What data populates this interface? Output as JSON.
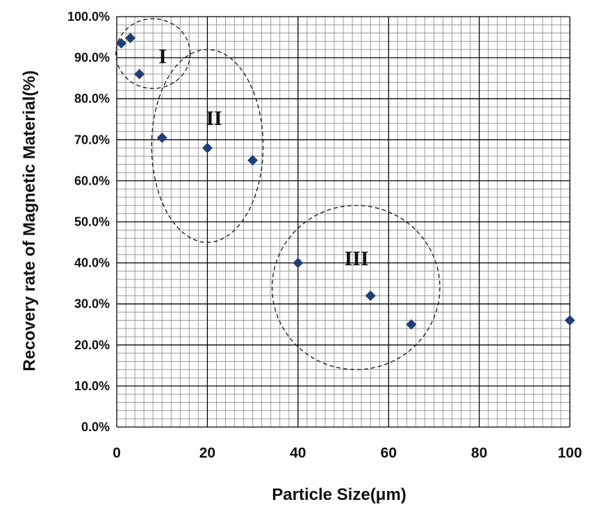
{
  "chart_data": {
    "type": "scatter",
    "xlabel": "Particle Size(μm)",
    "ylabel": "Recovery  rate of  Magnetic  Material(%)",
    "xlim": [
      0,
      100
    ],
    "ylim": [
      0,
      1
    ],
    "x_ticks": [
      "0",
      "20",
      "40",
      "60",
      "80",
      "100"
    ],
    "x_tick_values": [
      0,
      20,
      40,
      60,
      80,
      100
    ],
    "y_ticks": [
      "0.0%",
      "10.0%",
      "20.0%",
      "30.0%",
      "40.0%",
      "50.0%",
      "60.0%",
      "70.0%",
      "80.0%",
      "90.0%",
      "100.0%"
    ],
    "y_tick_values": [
      0,
      0.1,
      0.2,
      0.3,
      0.4,
      0.5,
      0.6,
      0.7,
      0.8,
      0.9,
      1.0
    ],
    "grid": true,
    "marker": "diamond",
    "marker_color": "#1f3f77",
    "points": [
      {
        "x": 1,
        "y": 0.935
      },
      {
        "x": 3,
        "y": 0.948
      },
      {
        "x": 5,
        "y": 0.86
      },
      {
        "x": 10,
        "y": 0.705
      },
      {
        "x": 20,
        "y": 0.68
      },
      {
        "x": 30,
        "y": 0.65
      },
      {
        "x": 40,
        "y": 0.4
      },
      {
        "x": 56,
        "y": 0.32
      },
      {
        "x": 65,
        "y": 0.25
      },
      {
        "x": 100,
        "y": 0.26
      }
    ],
    "groups": [
      {
        "label": "I",
        "center": {
          "x": 8,
          "y": 0.91
        },
        "radius": {
          "x": 8.2,
          "y": 0.085
        }
      },
      {
        "label": "II",
        "center": {
          "x": 20,
          "y": 0.685
        },
        "radius": {
          "x": 12.3,
          "y": 0.235
        }
      },
      {
        "label": "III",
        "center": {
          "x": 52.8,
          "y": 0.34
        },
        "radius": {
          "x": 18.5,
          "y": 0.2
        }
      }
    ]
  }
}
